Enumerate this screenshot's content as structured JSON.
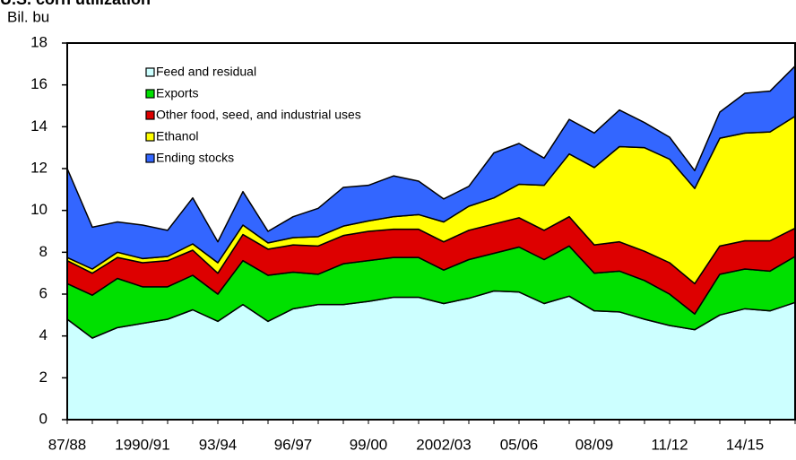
{
  "chart_data": {
    "type": "stacked_area",
    "title": "U.S. corn utilization",
    "y_label": "Bil. bu",
    "categories": [
      "87/88",
      null,
      null,
      "1990/91",
      null,
      null,
      "93/94",
      null,
      null,
      "96/97",
      null,
      null,
      "99/00",
      null,
      null,
      "2002/03",
      null,
      null,
      "05/06",
      null,
      null,
      "08/09",
      null,
      null,
      "11/12",
      null,
      null,
      "14/15",
      null,
      null
    ],
    "series": [
      {
        "name": "Feed and residual",
        "color": "#ccffff",
        "values": [
          4.8,
          3.9,
          4.4,
          4.6,
          4.8,
          5.25,
          4.7,
          5.5,
          4.7,
          5.3,
          5.5,
          5.5,
          5.65,
          5.85,
          5.85,
          5.55,
          5.8,
          6.15,
          6.1,
          5.55,
          5.9,
          5.2,
          5.15,
          4.8,
          4.5,
          4.3,
          5.0,
          5.3,
          5.2,
          5.6
        ]
      },
      {
        "name": "Exports",
        "color": "#00e000",
        "values": [
          1.7,
          2.05,
          2.35,
          1.75,
          1.55,
          1.65,
          1.3,
          2.1,
          2.2,
          1.75,
          1.45,
          1.95,
          1.95,
          1.9,
          1.9,
          1.6,
          1.85,
          1.8,
          2.15,
          2.1,
          2.4,
          1.8,
          1.95,
          1.85,
          1.5,
          0.75,
          1.95,
          1.9,
          1.9,
          2.2
        ]
      },
      {
        "name": "Other food, seed, and industrial uses",
        "color": "#dd0000",
        "values": [
          1.1,
          1.05,
          1.0,
          1.15,
          1.25,
          1.2,
          1.0,
          1.25,
          1.25,
          1.3,
          1.35,
          1.35,
          1.4,
          1.35,
          1.35,
          1.35,
          1.4,
          1.4,
          1.4,
          1.4,
          1.4,
          1.35,
          1.4,
          1.4,
          1.5,
          1.45,
          1.35,
          1.35,
          1.45,
          1.35
        ]
      },
      {
        "name": "Ethanol",
        "color": "#ffff00",
        "values": [
          0.15,
          0.2,
          0.25,
          0.2,
          0.2,
          0.3,
          0.5,
          0.45,
          0.3,
          0.35,
          0.45,
          0.45,
          0.5,
          0.6,
          0.7,
          0.95,
          1.15,
          1.25,
          1.6,
          2.15,
          3.0,
          3.7,
          4.55,
          4.95,
          4.95,
          4.55,
          5.15,
          5.15,
          5.2,
          5.35
        ]
      },
      {
        "name": "Ending stocks",
        "color": "#3366ff",
        "values": [
          4.25,
          2.0,
          1.45,
          1.6,
          1.25,
          2.2,
          1.0,
          1.6,
          0.55,
          1.0,
          1.35,
          1.85,
          1.7,
          1.95,
          1.6,
          1.1,
          0.95,
          2.15,
          1.95,
          1.3,
          1.65,
          1.65,
          1.75,
          1.2,
          1.05,
          0.85,
          1.25,
          1.9,
          1.95,
          2.4
        ]
      }
    ],
    "ylim": [
      0,
      18
    ],
    "yticks": [
      0,
      2,
      4,
      6,
      8,
      10,
      12,
      14,
      16,
      18
    ],
    "legend": "upper left"
  }
}
